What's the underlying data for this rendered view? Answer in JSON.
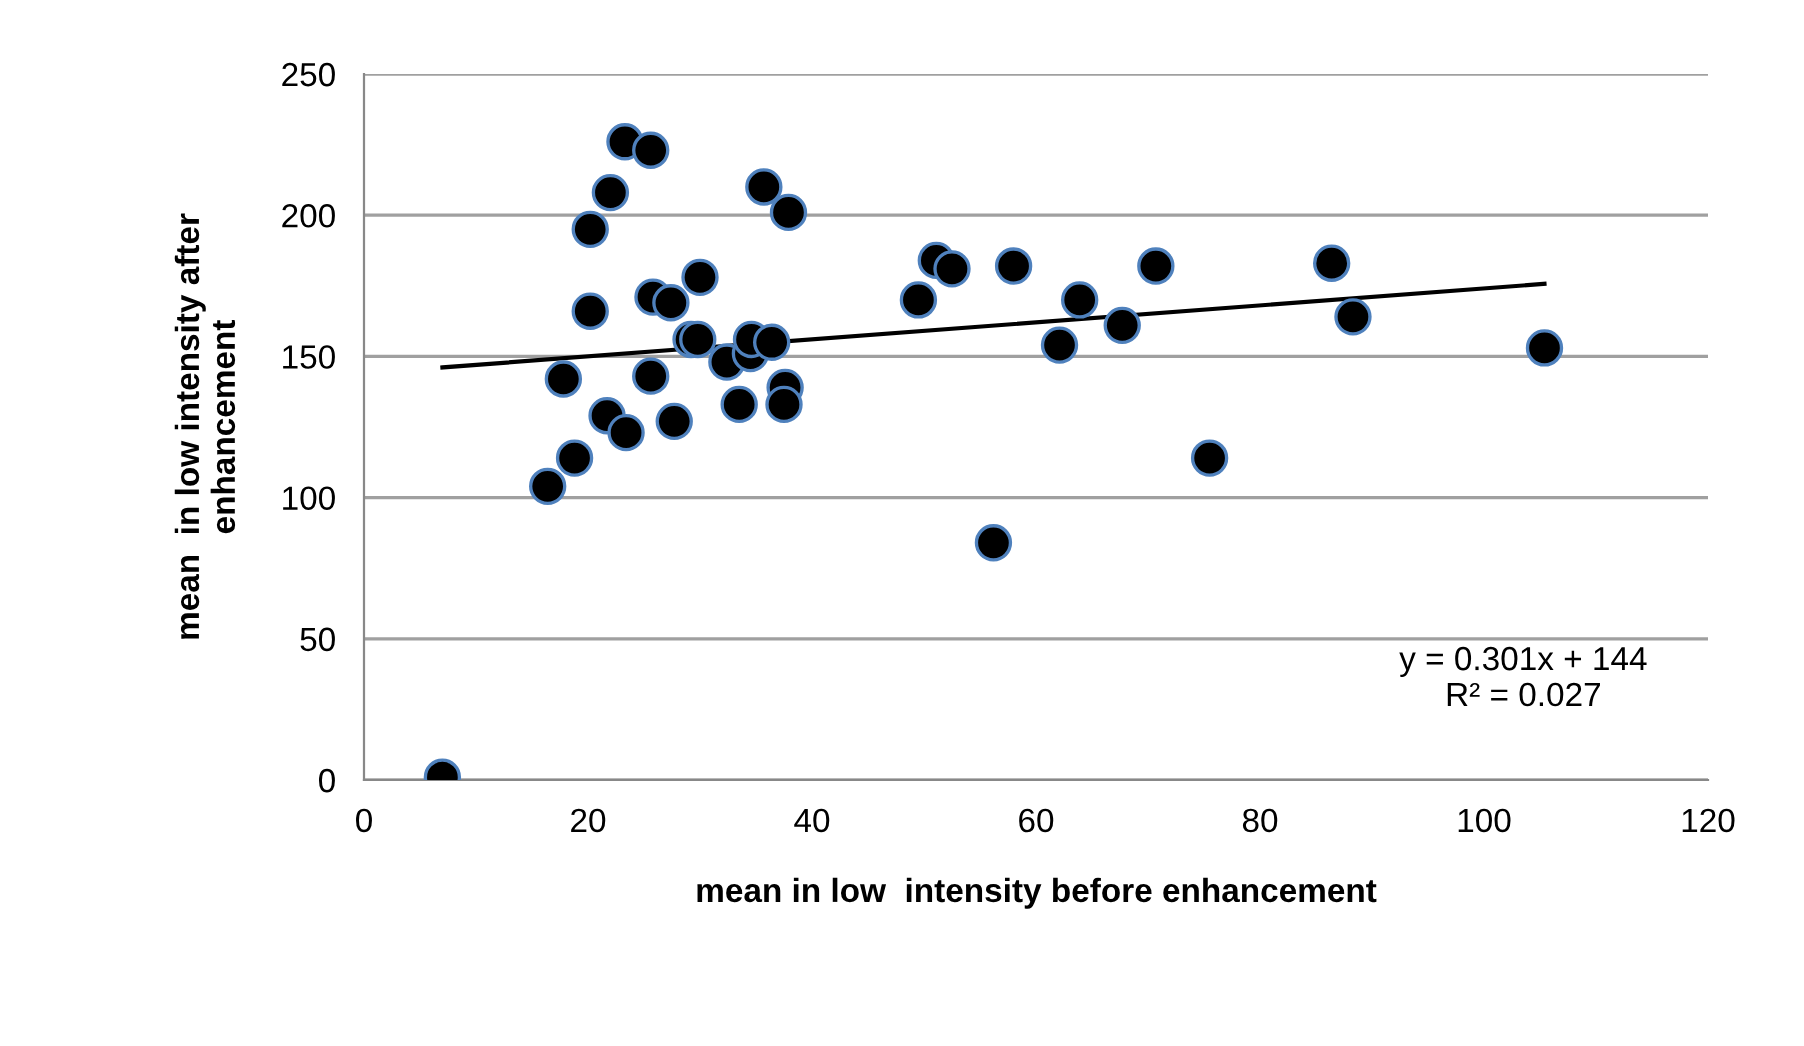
{
  "chart_data": {
    "type": "scatter",
    "xlabel": "mean in low  intensity before enhancement",
    "ylabel": "mean  in low intensity after\nenhancement",
    "series": [
      {
        "marker": "circle",
        "color": "#000000",
        "x": [
          7.0,
          16.4,
          18.8,
          17.8,
          20.2,
          20.2,
          22.0,
          23.3,
          25.6,
          21.7,
          23.4,
          25.8,
          27.4,
          25.6,
          27.7,
          30.0,
          29.2,
          29.8,
          32.4,
          33.5,
          34.5,
          34.6,
          36.4,
          35.7,
          37.9,
          37.6,
          37.5,
          49.5,
          51.1,
          52.5,
          56.2,
          58.0,
          62.1,
          63.9,
          67.7,
          70.7,
          75.5,
          86.4,
          88.3,
          105.4
        ],
        "values": [
          1,
          104,
          114,
          142,
          166,
          195,
          208,
          226,
          223,
          129,
          123,
          171,
          169,
          143,
          127,
          178,
          156,
          156,
          148,
          133,
          151,
          156,
          155,
          210,
          201,
          139,
          133,
          170,
          184,
          181,
          84,
          182,
          154,
          170,
          161,
          182,
          114,
          183,
          164,
          153
        ]
      },
      {
        "type": "line",
        "marker": "none",
        "color": "#000000",
        "x": [
          7.0,
          105.4
        ],
        "values": [
          146.1,
          175.7
        ]
      }
    ],
    "xlim": [
      0,
      120
    ],
    "xticks": [
      0,
      20,
      40,
      60,
      80,
      100,
      120
    ],
    "ylim": [
      0,
      250
    ],
    "yticks": [
      0,
      50,
      100,
      150,
      200,
      250
    ],
    "grid": "y",
    "annotations": [
      "y = 0.301x + 144\nR² = 0.027"
    ]
  }
}
